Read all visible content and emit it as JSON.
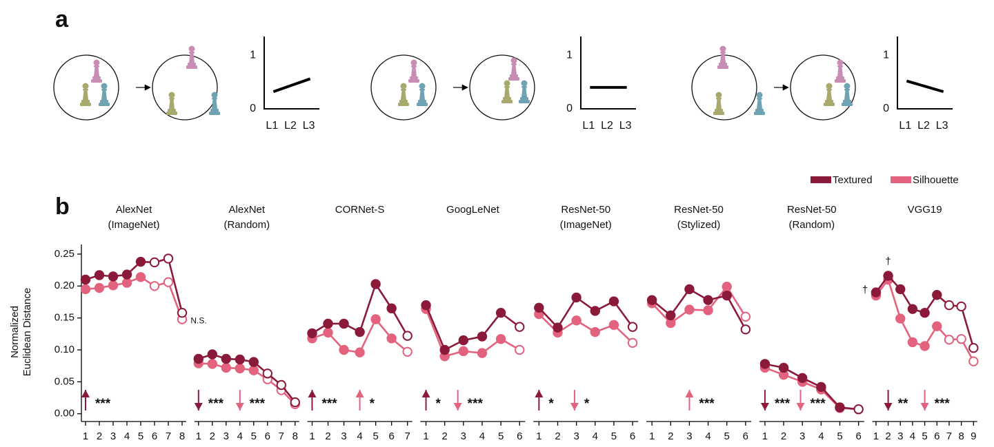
{
  "panel_labels": [
    "a",
    "b"
  ],
  "chart_data": [
    {
      "type": "line",
      "categories": [
        "L1",
        "L2",
        "L3"
      ],
      "values": [
        0.32,
        0.44,
        0.56
      ],
      "color": "#000000",
      "ylim": [
        0,
        1.35
      ],
      "yticks": [
        0,
        1
      ]
    },
    {
      "type": "line",
      "categories": [
        "L1",
        "L2",
        "L3"
      ],
      "values": [
        0.4,
        0.4,
        0.4
      ],
      "color": "#000000",
      "ylim": [
        0,
        1.35
      ],
      "yticks": [
        0,
        1
      ]
    },
    {
      "type": "line",
      "categories": [
        "L1",
        "L2",
        "L3"
      ],
      "values": [
        0.52,
        0.42,
        0.32
      ],
      "color": "#000000",
      "ylim": [
        0,
        1.35
      ],
      "yticks": [
        0,
        1
      ]
    },
    {
      "type": "line",
      "title": [
        "AlexNet",
        "(ImageNet)"
      ],
      "x": [
        1,
        2,
        3,
        4,
        5,
        6,
        7,
        8
      ],
      "xlim": [
        0.7,
        8.3
      ],
      "ylim": [
        -0.01,
        0.265
      ],
      "yticks": [
        {
          "value": 0,
          "label": "0.00"
        },
        0.05,
        {
          "value": 0.1,
          "label": "0.10"
        },
        0.15,
        {
          "value": 0.2,
          "label": "0.20"
        },
        0.25
      ],
      "ylabel": [
        "Normalized",
        "Euclidean Distance"
      ],
      "series": [
        {
          "name": "Textured",
          "color": "#8b1a3a",
          "values": [
            0.21,
            0.217,
            0.215,
            0.218,
            0.238,
            0.237,
            0.243,
            0.158
          ],
          "filled": [
            true,
            true,
            true,
            true,
            true,
            false,
            false,
            false
          ]
        },
        {
          "name": "Silhouette",
          "color": "#e3637f",
          "values": [
            0.195,
            0.197,
            0.201,
            0.205,
            0.214,
            0.2,
            0.206,
            0.148
          ],
          "filled": [
            true,
            true,
            true,
            true,
            true,
            false,
            false,
            false
          ]
        }
      ],
      "annotations": [
        {
          "text": "***",
          "color": "#8b1a3a",
          "direction": "up",
          "x": 1
        },
        {
          "text": "N.S.",
          "x": 9.2,
          "y": 0.145
        }
      ]
    },
    {
      "type": "line",
      "title": [
        "AlexNet",
        "(Random)"
      ],
      "x": [
        1,
        2,
        3,
        4,
        5,
        6,
        7,
        8
      ],
      "xlim": [
        0.7,
        8.3
      ],
      "ylim": [
        -0.01,
        0.265
      ],
      "series": [
        {
          "color": "#8b1a3a",
          "values": [
            0.086,
            0.093,
            0.086,
            0.085,
            0.081,
            0.063,
            0.045,
            0.018
          ],
          "filled": [
            true,
            true,
            true,
            true,
            true,
            false,
            false,
            false
          ]
        },
        {
          "color": "#e3637f",
          "values": [
            0.079,
            0.078,
            0.072,
            0.071,
            0.068,
            0.054,
            0.037,
            0.015
          ],
          "filled": [
            true,
            true,
            true,
            true,
            true,
            false,
            false,
            false
          ]
        }
      ],
      "annotations": [
        {
          "text": "***",
          "color": "#8b1a3a",
          "direction": "down",
          "x": 1
        },
        {
          "text": "***",
          "color": "#e3637f",
          "direction": "down",
          "x": 4
        }
      ]
    },
    {
      "type": "line",
      "title": [
        "CORNet-S"
      ],
      "x": [
        1,
        2,
        3,
        4,
        5,
        6,
        7
      ],
      "xlim": [
        0.7,
        7.3
      ],
      "ylim": [
        -0.01,
        0.265
      ],
      "series": [
        {
          "color": "#8b1a3a",
          "values": [
            0.126,
            0.141,
            0.141,
            0.128,
            0.203,
            0.165,
            0.122
          ],
          "filled": [
            true,
            true,
            true,
            true,
            true,
            true,
            false
          ]
        },
        {
          "color": "#e3637f",
          "values": [
            0.118,
            0.127,
            0.1,
            0.096,
            0.148,
            0.118,
            0.097
          ],
          "filled": [
            true,
            true,
            true,
            true,
            true,
            true,
            false
          ]
        }
      ],
      "annotations": [
        {
          "text": "***",
          "color": "#8b1a3a",
          "direction": "up",
          "x": 1
        },
        {
          "text": "*",
          "color": "#e3637f",
          "direction": "up",
          "x": 4
        }
      ]
    },
    {
      "type": "line",
      "title": [
        "GoogLeNet"
      ],
      "x": [
        1,
        2,
        3,
        4,
        5,
        6
      ],
      "xlim": [
        0.7,
        6.3
      ],
      "ylim": [
        -0.01,
        0.265
      ],
      "series": [
        {
          "color": "#8b1a3a",
          "values": [
            0.17,
            0.1,
            0.115,
            0.121,
            0.158,
            0.136
          ],
          "filled": [
            true,
            true,
            true,
            true,
            true,
            false
          ]
        },
        {
          "color": "#e3637f",
          "values": [
            0.164,
            0.09,
            0.098,
            0.095,
            0.117,
            0.1
          ],
          "filled": [
            true,
            true,
            true,
            true,
            true,
            false
          ]
        }
      ],
      "annotations": [
        {
          "text": "*",
          "color": "#8b1a3a",
          "direction": "up",
          "x": 1
        },
        {
          "text": "***",
          "color": "#e3637f",
          "direction": "down",
          "x": 2.7
        }
      ]
    },
    {
      "type": "line",
      "title": [
        "ResNet-50",
        "(ImageNet)"
      ],
      "x": [
        1,
        2,
        3,
        4,
        5,
        6
      ],
      "xlim": [
        0.7,
        6.3
      ],
      "ylim": [
        -0.01,
        0.265
      ],
      "series": [
        {
          "color": "#8b1a3a",
          "values": [
            0.166,
            0.135,
            0.182,
            0.161,
            0.176,
            0.136
          ],
          "filled": [
            true,
            true,
            true,
            true,
            true,
            false
          ]
        },
        {
          "color": "#e3637f",
          "values": [
            0.156,
            0.127,
            0.146,
            0.128,
            0.139,
            0.111
          ],
          "filled": [
            true,
            true,
            true,
            true,
            true,
            false
          ]
        }
      ],
      "annotations": [
        {
          "text": "*",
          "color": "#8b1a3a",
          "direction": "up",
          "x": 1
        },
        {
          "text": "*",
          "color": "#e3637f",
          "direction": "down",
          "x": 2.9
        }
      ]
    },
    {
      "type": "line",
      "title": [
        "ResNet-50",
        "(Stylized)"
      ],
      "x": [
        1,
        2,
        3,
        4,
        5,
        6
      ],
      "xlim": [
        0.7,
        6.3
      ],
      "ylim": [
        -0.01,
        0.265
      ],
      "series": [
        {
          "color": "#8b1a3a",
          "values": [
            0.178,
            0.154,
            0.195,
            0.178,
            0.185,
            0.132
          ],
          "filled": [
            true,
            true,
            true,
            true,
            true,
            false
          ]
        },
        {
          "color": "#e3637f",
          "values": [
            0.173,
            0.142,
            0.163,
            0.162,
            0.199,
            0.152
          ],
          "filled": [
            true,
            true,
            true,
            true,
            true,
            false
          ]
        }
      ],
      "annotations": [
        {
          "text": "***",
          "color": "#e3637f",
          "direction": "up",
          "x": 3
        }
      ]
    },
    {
      "type": "line",
      "title": [
        "ResNet-50",
        "(Random)"
      ],
      "x": [
        1,
        2,
        3,
        4,
        5,
        6
      ],
      "xlim": [
        0.7,
        6.3
      ],
      "ylim": [
        -0.01,
        0.265
      ],
      "series": [
        {
          "color": "#8b1a3a",
          "values": [
            0.078,
            0.072,
            0.056,
            0.042,
            0.01,
            0.007
          ],
          "filled": [
            true,
            true,
            true,
            true,
            true,
            false
          ]
        },
        {
          "color": "#e3637f",
          "values": [
            0.072,
            0.061,
            0.05,
            0.038,
            0.009,
            0.007
          ],
          "filled": [
            true,
            true,
            true,
            true,
            true,
            false
          ]
        }
      ],
      "annotations": [
        {
          "text": "***",
          "color": "#8b1a3a",
          "direction": "down",
          "x": 1
        },
        {
          "text": "***",
          "color": "#e3637f",
          "direction": "down",
          "x": 2.9
        }
      ]
    },
    {
      "type": "line",
      "title": [
        "VGG19"
      ],
      "x": [
        1,
        2,
        3,
        4,
        5,
        6,
        7,
        8,
        9
      ],
      "xlim": [
        0.7,
        9.3
      ],
      "ylim": [
        -0.01,
        0.265
      ],
      "series": [
        {
          "color": "#8b1a3a",
          "values": [
            0.19,
            0.216,
            0.195,
            0.164,
            0.158,
            0.186,
            0.17,
            0.168,
            0.103
          ],
          "filled": [
            true,
            true,
            true,
            true,
            true,
            true,
            false,
            false,
            false
          ]
        },
        {
          "color": "#e3637f",
          "values": [
            0.185,
            0.21,
            0.149,
            0.112,
            0.106,
            0.137,
            0.116,
            0.117,
            0.082
          ],
          "filled": [
            true,
            true,
            true,
            true,
            true,
            true,
            false,
            false,
            false
          ]
        }
      ],
      "annotations": [
        {
          "text": "**",
          "color": "#8b1a3a",
          "direction": "down",
          "x": 2
        },
        {
          "text": "***",
          "color": "#e3637f",
          "direction": "down",
          "x": 5
        },
        {
          "text": "†",
          "x": 0.1,
          "y": 0.193
        },
        {
          "text": "†",
          "x": 2,
          "y": 0.238
        }
      ]
    }
  ]
}
